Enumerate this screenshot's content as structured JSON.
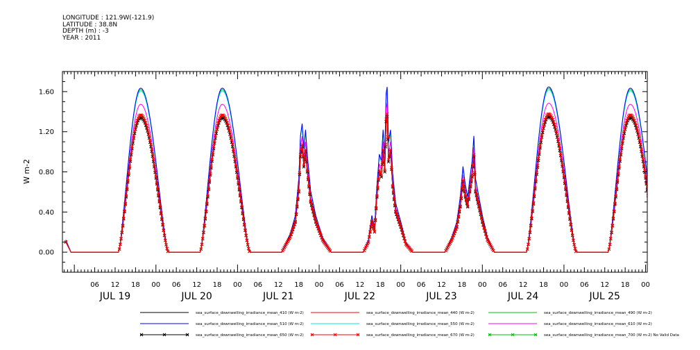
{
  "header": {
    "longitude": "LONGITUDE : 121.9W(-121.9)",
    "latitude": "LATITUDE : 38.8N",
    "depth": "DEPTH (m) : -3",
    "year": "YEAR : 2011"
  },
  "chart_data": {
    "type": "line",
    "ylabel": "W m-2",
    "ylim": [
      -0.2,
      1.8
    ],
    "yticks": [
      0.0,
      0.4,
      0.8,
      1.2,
      1.6
    ],
    "ytick_labels": [
      "0.00",
      "0.40",
      "0.80",
      "1.20",
      "1.60"
    ],
    "x_unit": "hours since 2011-07-19 00:00",
    "xlim": [
      -3.5,
      168.5
    ],
    "xtick_labels": [
      {
        "x": 6,
        "label": "06"
      },
      {
        "x": 12,
        "label": "12"
      },
      {
        "x": 18,
        "label": "18"
      },
      {
        "x": 24,
        "label": "00"
      },
      {
        "x": 30,
        "label": "06"
      },
      {
        "x": 36,
        "label": "12"
      },
      {
        "x": 42,
        "label": "18"
      },
      {
        "x": 48,
        "label": "00"
      },
      {
        "x": 54,
        "label": "06"
      },
      {
        "x": 60,
        "label": "12"
      },
      {
        "x": 66,
        "label": "18"
      },
      {
        "x": 72,
        "label": "00"
      },
      {
        "x": 78,
        "label": "06"
      },
      {
        "x": 84,
        "label": "12"
      },
      {
        "x": 90,
        "label": "18"
      },
      {
        "x": 96,
        "label": "00"
      },
      {
        "x": 102,
        "label": "06"
      },
      {
        "x": 108,
        "label": "12"
      },
      {
        "x": 114,
        "label": "18"
      },
      {
        "x": 120,
        "label": "00"
      },
      {
        "x": 126,
        "label": "06"
      },
      {
        "x": 132,
        "label": "12"
      },
      {
        "x": 138,
        "label": "18"
      },
      {
        "x": 144,
        "label": "00"
      },
      {
        "x": 150,
        "label": "06"
      },
      {
        "x": 156,
        "label": "12"
      },
      {
        "x": 162,
        "label": "18"
      },
      {
        "x": 168,
        "label": "00"
      }
    ],
    "day_labels": [
      {
        "x": 12,
        "label": "JUL 19"
      },
      {
        "x": 36,
        "label": "JUL 20"
      },
      {
        "x": 60,
        "label": "JUL 21"
      },
      {
        "x": 84,
        "label": "JUL 22"
      },
      {
        "x": 108,
        "label": "JUL 23"
      },
      {
        "x": 132,
        "label": "JUL 24"
      },
      {
        "x": 156,
        "label": "JUL 25"
      }
    ],
    "days": [
      {
        "kind": "clear",
        "sunrise": 13.0,
        "sunset": 27.6,
        "peak_hour": 19.5,
        "peak_410": 1.34
      },
      {
        "kind": "clear",
        "sunrise": 37.0,
        "sunset": 51.6,
        "peak_hour": 43.5,
        "peak_410": 1.34
      },
      {
        "kind": "cloudy",
        "sunrise": 61.0,
        "sunset": 75.5,
        "points": [
          [
            61.0,
            0.0
          ],
          [
            63.5,
            0.15
          ],
          [
            65.0,
            0.3
          ],
          [
            66.0,
            0.6
          ],
          [
            66.5,
            0.95
          ],
          [
            67.0,
            1.05
          ],
          [
            67.5,
            0.85
          ],
          [
            68.0,
            1.0
          ],
          [
            68.5,
            0.8
          ],
          [
            69.5,
            0.5
          ],
          [
            71.0,
            0.3
          ],
          [
            73.0,
            0.12
          ],
          [
            75.5,
            0.0
          ]
        ]
      },
      {
        "kind": "cloudy",
        "sunrise": 85.0,
        "sunset": 99.5,
        "points": [
          [
            85.0,
            0.0
          ],
          [
            86.5,
            0.1
          ],
          [
            87.5,
            0.3
          ],
          [
            88.3,
            0.2
          ],
          [
            89.0,
            0.55
          ],
          [
            89.7,
            0.8
          ],
          [
            90.3,
            0.75
          ],
          [
            90.8,
            1.0
          ],
          [
            91.3,
            0.8
          ],
          [
            91.7,
            1.3
          ],
          [
            92.0,
            1.35
          ],
          [
            92.4,
            0.9
          ],
          [
            93.0,
            1.0
          ],
          [
            93.6,
            0.65
          ],
          [
            94.5,
            0.4
          ],
          [
            96.0,
            0.25
          ],
          [
            97.5,
            0.08
          ],
          [
            99.5,
            0.0
          ]
        ]
      },
      {
        "kind": "cloudy",
        "sunrise": 109.0,
        "sunset": 123.5,
        "points": [
          [
            109.0,
            0.0
          ],
          [
            111.0,
            0.12
          ],
          [
            112.5,
            0.25
          ],
          [
            113.5,
            0.45
          ],
          [
            114.3,
            0.7
          ],
          [
            115.0,
            0.55
          ],
          [
            115.7,
            0.45
          ],
          [
            116.3,
            0.6
          ],
          [
            117.0,
            0.75
          ],
          [
            117.5,
            0.95
          ],
          [
            118.0,
            0.6
          ],
          [
            119.0,
            0.45
          ],
          [
            120.0,
            0.3
          ],
          [
            121.5,
            0.12
          ],
          [
            123.5,
            0.0
          ]
        ]
      },
      {
        "kind": "clear",
        "sunrise": 133.0,
        "sunset": 147.6,
        "peak_hour": 139.5,
        "peak_410": 1.35
      },
      {
        "kind": "clear",
        "sunrise": 157.0,
        "sunset": 171.6,
        "peak_hour": 163.5,
        "peak_410": 1.34
      }
    ],
    "night_start_value": 0.1,
    "series": [
      {
        "name": "sea_surface_downwelling_irradiance_mean_410 (W m-2)",
        "color": "#000000",
        "scale": 1.0,
        "marker": "none"
      },
      {
        "name": "sea_surface_downwelling_irradiance_mean_440 (W m-2)",
        "color": "#ff0000",
        "scale": 1.02,
        "marker": "none"
      },
      {
        "name": "sea_surface_downwelling_irradiance_mean_490 (W m-2)",
        "color": "#00c000",
        "scale": 1.21,
        "marker": "none"
      },
      {
        "name": "sea_surface_downwelling_irradiance_mean_510 (W m-2)",
        "color": "#0000ff",
        "scale": 1.22,
        "marker": "none"
      },
      {
        "name": "sea_surface_downwelling_irradiance_mean_550 (W m-2)",
        "color": "#00e5e5",
        "scale": 1.2,
        "marker": "none"
      },
      {
        "name": "sea_surface_downwelling_irradiance_mean_610 (W m-2)",
        "color": "#ff00ff",
        "scale": 1.1,
        "marker": "none"
      },
      {
        "name": "sea_surface_downwelling_irradiance_mean_650 (W m-2)",
        "color": "#000000",
        "scale": 1.0,
        "marker": "x"
      },
      {
        "name": "sea_surface_downwelling_irradiance_mean_670 (W m-2)",
        "color": "#ff0000",
        "scale": 1.02,
        "marker": "x"
      },
      {
        "name": "sea_surface_downwelling_irradiance_mean_700 (W m-2) No Valid Data",
        "color": "#00c000",
        "scale": 0,
        "marker": "x"
      }
    ]
  }
}
